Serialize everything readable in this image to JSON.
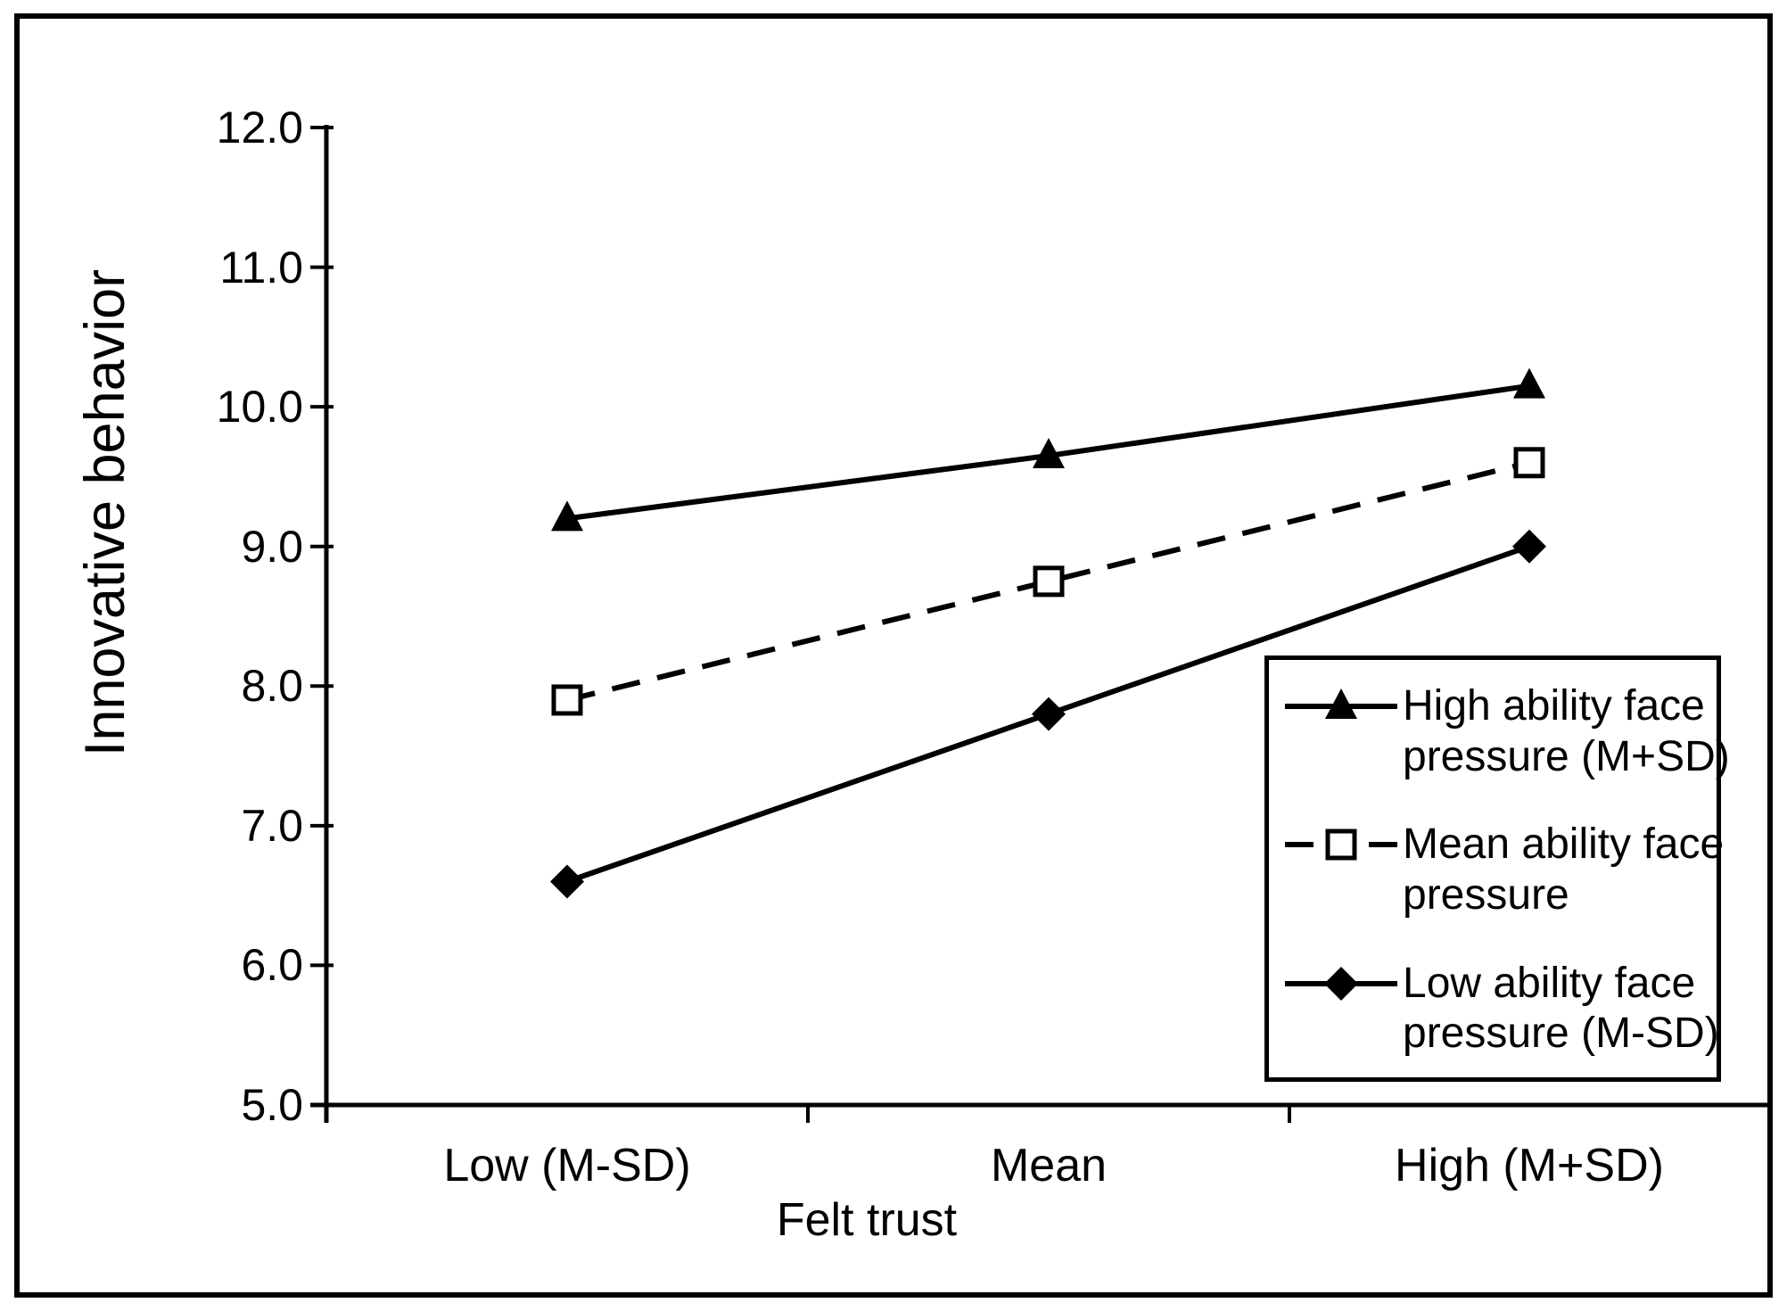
{
  "chart_data": {
    "type": "line",
    "title": "",
    "xlabel": "Felt trust",
    "ylabel": "Innovative behavior",
    "categories": [
      "Low (M-SD)",
      "Mean",
      "High (M+SD)"
    ],
    "series": [
      {
        "name": "High ability face\npressure (M+SD)",
        "marker": "filled-triangle",
        "line_style": "solid",
        "values": [
          9.2,
          9.65,
          10.15
        ]
      },
      {
        "name": "Mean ability face\npressure",
        "marker": "open-square",
        "line_style": "dashed",
        "values": [
          7.9,
          8.75,
          9.6
        ]
      },
      {
        "name": "Low ability face\npressure (M-SD)",
        "marker": "filled-diamond",
        "line_style": "solid",
        "values": [
          6.6,
          7.8,
          9.0
        ]
      }
    ],
    "ylim": [
      5.0,
      12.0
    ],
    "ytick_step": 1.0,
    "ytick_labels": [
      "5.0",
      "6.0",
      "7.0",
      "8.0",
      "9.0",
      "10.0",
      "11.0",
      "12.0"
    ],
    "grid": false,
    "legend_position": "inside-right",
    "colors": {
      "foreground": "#000000",
      "background": "#ffffff",
      "border": "#000000"
    }
  }
}
